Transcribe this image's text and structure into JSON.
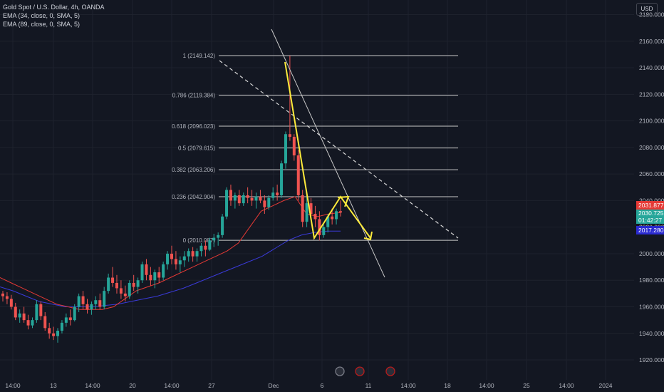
{
  "legend": {
    "symbol": "Gold Spot / U.S. Dollar, 4h, OANDA",
    "ema1": "EMA (34, close, 0, SMA, 5)",
    "ema2": "EMA (89, close, 0, SMA, 5)"
  },
  "currency_button": "USD",
  "price_tags": {
    "red": "2031.877",
    "green_price": "2030.725",
    "green_timer": "01:42:27",
    "blue": "2017.280"
  },
  "colors": {
    "background": "#131722",
    "up": "#26a69a",
    "down": "#ef5350",
    "ema34": "#e53935",
    "ema89": "#3a3ad8",
    "arrow": "#ffeb3b",
    "fib": "#c8c8c8",
    "blue_tag": "#2a2ad0"
  },
  "chart_data": {
    "type": "candlestick",
    "y_axis": {
      "ylim": [
        1905,
        2191
      ],
      "ticks": [
        2180,
        2160,
        2140,
        2120,
        2100,
        2080,
        2060,
        2040,
        2020,
        2000,
        1980,
        1960,
        1940,
        1920
      ],
      "labels": [
        "2180.000",
        "2160.000",
        "2140.000",
        "2120.000",
        "2100.000",
        "2080.000",
        "2060.000",
        "2040.000",
        "2020.000",
        "2000.000",
        "1980.000",
        "1960.000",
        "1940.000",
        "1920.000"
      ]
    },
    "x_axis": {
      "labels": [
        "14:00",
        "13",
        "14:00",
        "20",
        "14:00",
        "27",
        "Dec",
        "6",
        "11",
        "14:00",
        "18",
        "14:00",
        "25",
        "14:00",
        "2024"
      ]
    },
    "fib_levels": [
      {
        "label": "1 (2149.142)",
        "price": 2149.142
      },
      {
        "label": "0.786 (2119.384)",
        "price": 2119.384
      },
      {
        "label": "0.618 (2096.023)",
        "price": 2096.023
      },
      {
        "label": "0.5 (2079.615)",
        "price": 2079.615
      },
      {
        "label": "0.382 (2063.206)",
        "price": 2063.206
      },
      {
        "label": "0.236 (2042.904)",
        "price": 2042.904
      },
      {
        "label": "0 (2010.087)",
        "price": 2010.087
      }
    ],
    "candles": [
      [
        1970,
        1972,
        1964,
        1968
      ],
      [
        1968,
        1971,
        1962,
        1966
      ],
      [
        1966,
        1969,
        1958,
        1960
      ],
      [
        1960,
        1963,
        1950,
        1952
      ],
      [
        1952,
        1958,
        1948,
        1955
      ],
      [
        1955,
        1960,
        1948,
        1950
      ],
      [
        1950,
        1954,
        1943,
        1946
      ],
      [
        1946,
        1952,
        1944,
        1950
      ],
      [
        1950,
        1965,
        1948,
        1962
      ],
      [
        1962,
        1964,
        1950,
        1953
      ],
      [
        1953,
        1956,
        1942,
        1944
      ],
      [
        1944,
        1948,
        1936,
        1940
      ],
      [
        1940,
        1945,
        1935,
        1938
      ],
      [
        1938,
        1944,
        1933,
        1942
      ],
      [
        1942,
        1950,
        1940,
        1948
      ],
      [
        1948,
        1955,
        1945,
        1952
      ],
      [
        1952,
        1958,
        1946,
        1950
      ],
      [
        1950,
        1962,
        1949,
        1960
      ],
      [
        1960,
        1970,
        1956,
        1968
      ],
      [
        1968,
        1972,
        1958,
        1962
      ],
      [
        1962,
        1966,
        1955,
        1958
      ],
      [
        1958,
        1964,
        1954,
        1962
      ],
      [
        1962,
        1968,
        1958,
        1965
      ],
      [
        1965,
        1970,
        1958,
        1960
      ],
      [
        1960,
        1975,
        1958,
        1972
      ],
      [
        1972,
        1985,
        1970,
        1982
      ],
      [
        1982,
        1990,
        1975,
        1978
      ],
      [
        1978,
        1984,
        1970,
        1974
      ],
      [
        1974,
        1980,
        1966,
        1970
      ],
      [
        1970,
        1976,
        1964,
        1968
      ],
      [
        1968,
        1980,
        1966,
        1978
      ],
      [
        1978,
        1984,
        1972,
        1975
      ],
      [
        1975,
        1982,
        1970,
        1980
      ],
      [
        1980,
        1994,
        1978,
        1992
      ],
      [
        1992,
        1996,
        1980,
        1984
      ],
      [
        1984,
        1990,
        1976,
        1980
      ],
      [
        1980,
        1988,
        1974,
        1986
      ],
      [
        1986,
        1990,
        1978,
        1982
      ],
      [
        1982,
        1994,
        1980,
        1992
      ],
      [
        1992,
        2002,
        1988,
        2000
      ],
      [
        2000,
        2006,
        1992,
        1996
      ],
      [
        1996,
        2002,
        1988,
        1992
      ],
      [
        1992,
        1998,
        1986,
        1995
      ],
      [
        1995,
        2002,
        1990,
        1998
      ],
      [
        1998,
        2004,
        1994,
        2002
      ],
      [
        2002,
        2005,
        1994,
        1998
      ],
      [
        1998,
        2004,
        1994,
        2002
      ],
      [
        2002,
        2008,
        1998,
        2006
      ],
      [
        2006,
        2010,
        1998,
        2003
      ],
      [
        2003,
        2012,
        2002,
        2010
      ],
      [
        2010,
        2015,
        2005,
        2012
      ],
      [
        2012,
        2016,
        2006,
        2014
      ],
      [
        2014,
        2030,
        2012,
        2028
      ],
      [
        2028,
        2050,
        2026,
        2048
      ],
      [
        2048,
        2052,
        2036,
        2040
      ],
      [
        2040,
        2046,
        2034,
        2044
      ],
      [
        2044,
        2048,
        2036,
        2038
      ],
      [
        2038,
        2046,
        2036,
        2044
      ],
      [
        2044,
        2050,
        2038,
        2042
      ],
      [
        2042,
        2048,
        2036,
        2040
      ],
      [
        2040,
        2046,
        2034,
        2043
      ],
      [
        2043,
        2048,
        2038,
        2040
      ],
      [
        2040,
        2044,
        2030,
        2035
      ],
      [
        2035,
        2044,
        2033,
        2042
      ],
      [
        2042,
        2050,
        2040,
        2046
      ],
      [
        2046,
        2052,
        2040,
        2044
      ],
      [
        2044,
        2070,
        2042,
        2068
      ],
      [
        2068,
        2092,
        2064,
        2090
      ],
      [
        2090,
        2149,
        2085,
        2088
      ],
      [
        2088,
        2090,
        2070,
        2074
      ],
      [
        2074,
        2078,
        2040,
        2044
      ],
      [
        2044,
        2048,
        2020,
        2024
      ],
      [
        2024,
        2044,
        2020,
        2038
      ],
      [
        2038,
        2042,
        2026,
        2030
      ],
      [
        2030,
        2036,
        2020,
        2026
      ],
      [
        2026,
        2032,
        2010,
        2014
      ],
      [
        2014,
        2022,
        2012,
        2020
      ],
      [
        2020,
        2030,
        2016,
        2028
      ],
      [
        2028,
        2034,
        2022,
        2026
      ],
      [
        2026,
        2034,
        2022,
        2032
      ],
      [
        2032,
        2040,
        2028,
        2031
      ]
    ],
    "ema34_approx": [
      1982,
      1978,
      1974,
      1970,
      1966,
      1962,
      1960,
      1958,
      1958,
      1958,
      1960,
      1966,
      1972,
      1975,
      1978,
      1982,
      1986,
      1990,
      1994,
      1998,
      2002,
      2008,
      2020,
      2032,
      2036,
      2040,
      2043,
      2030,
      2028,
      2030,
      2031
    ],
    "ema89_approx": [
      1975,
      1972,
      1968,
      1964,
      1962,
      1960,
      1960,
      1960,
      1961,
      1962,
      1964,
      1966,
      1968,
      1971,
      1974,
      1978,
      1982,
      1986,
      1990,
      1994,
      1998,
      2004,
      2010,
      2014,
      2016,
      2017,
      2017
    ]
  }
}
